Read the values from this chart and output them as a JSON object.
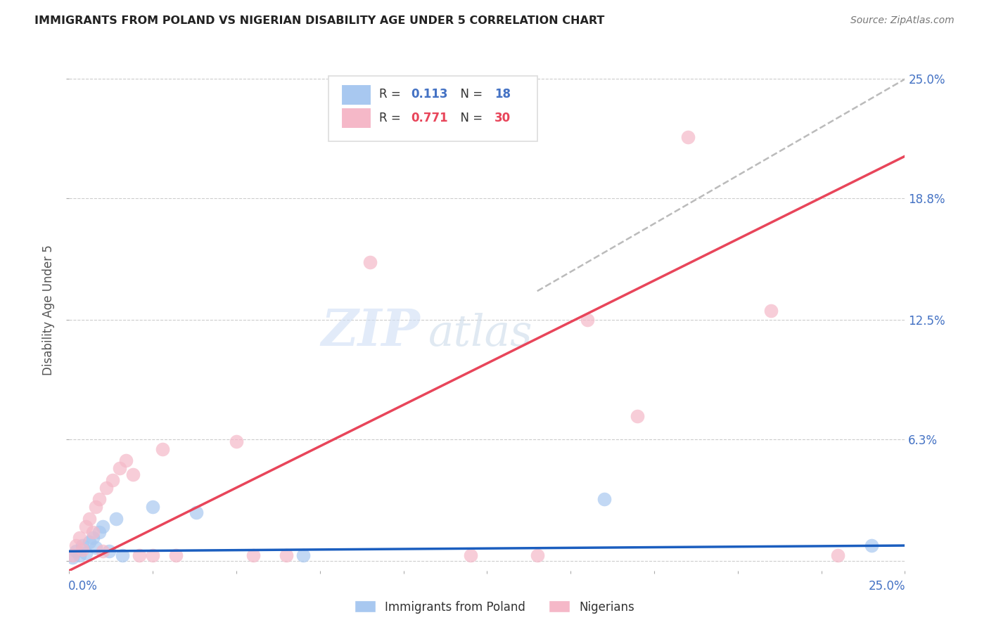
{
  "title": "IMMIGRANTS FROM POLAND VS NIGERIAN DISABILITY AGE UNDER 5 CORRELATION CHART",
  "source": "Source: ZipAtlas.com",
  "ylabel": "Disability Age Under 5",
  "xlim": [
    0.0,
    0.25
  ],
  "ylim": [
    -0.005,
    0.265
  ],
  "watermark_line1": "ZIP",
  "watermark_line2": "atlas",
  "legend": {
    "poland_R": "0.113",
    "poland_N": "18",
    "nigeria_R": "0.771",
    "nigeria_N": "30"
  },
  "poland_color": "#A8C8F0",
  "nigeria_color": "#F5B8C8",
  "poland_line_color": "#1B5EBF",
  "nigeria_line_color": "#E8455A",
  "dashed_line_color": "#BBBBBB",
  "right_ytick_positions": [
    0.0,
    0.063,
    0.125,
    0.188,
    0.25
  ],
  "right_yticklabels": [
    "",
    "6.3%",
    "12.5%",
    "18.8%",
    "25.0%"
  ],
  "poland_scatter": [
    [
      0.001,
      0.002
    ],
    [
      0.002,
      0.005
    ],
    [
      0.003,
      0.003
    ],
    [
      0.004,
      0.008
    ],
    [
      0.005,
      0.004
    ],
    [
      0.006,
      0.01
    ],
    [
      0.007,
      0.012
    ],
    [
      0.008,
      0.007
    ],
    [
      0.009,
      0.015
    ],
    [
      0.01,
      0.018
    ],
    [
      0.012,
      0.005
    ],
    [
      0.014,
      0.022
    ],
    [
      0.016,
      0.003
    ],
    [
      0.025,
      0.028
    ],
    [
      0.038,
      0.025
    ],
    [
      0.07,
      0.003
    ],
    [
      0.16,
      0.032
    ],
    [
      0.24,
      0.008
    ]
  ],
  "nigeria_scatter": [
    [
      0.001,
      0.003
    ],
    [
      0.002,
      0.008
    ],
    [
      0.003,
      0.012
    ],
    [
      0.004,
      0.006
    ],
    [
      0.005,
      0.018
    ],
    [
      0.006,
      0.022
    ],
    [
      0.007,
      0.015
    ],
    [
      0.008,
      0.028
    ],
    [
      0.009,
      0.032
    ],
    [
      0.01,
      0.005
    ],
    [
      0.011,
      0.038
    ],
    [
      0.013,
      0.042
    ],
    [
      0.015,
      0.048
    ],
    [
      0.017,
      0.052
    ],
    [
      0.019,
      0.045
    ],
    [
      0.021,
      0.003
    ],
    [
      0.025,
      0.003
    ],
    [
      0.028,
      0.058
    ],
    [
      0.032,
      0.003
    ],
    [
      0.05,
      0.062
    ],
    [
      0.055,
      0.003
    ],
    [
      0.065,
      0.003
    ],
    [
      0.09,
      0.155
    ],
    [
      0.155,
      0.125
    ],
    [
      0.17,
      0.075
    ],
    [
      0.185,
      0.22
    ],
    [
      0.21,
      0.13
    ],
    [
      0.23,
      0.003
    ],
    [
      0.12,
      0.003
    ],
    [
      0.14,
      0.003
    ]
  ],
  "nigeria_line": [
    0.0,
    -0.005,
    0.25,
    0.21
  ],
  "poland_line": [
    0.0,
    0.005,
    0.25,
    0.008
  ],
  "dash_line": [
    0.14,
    0.14,
    0.25,
    0.25
  ]
}
